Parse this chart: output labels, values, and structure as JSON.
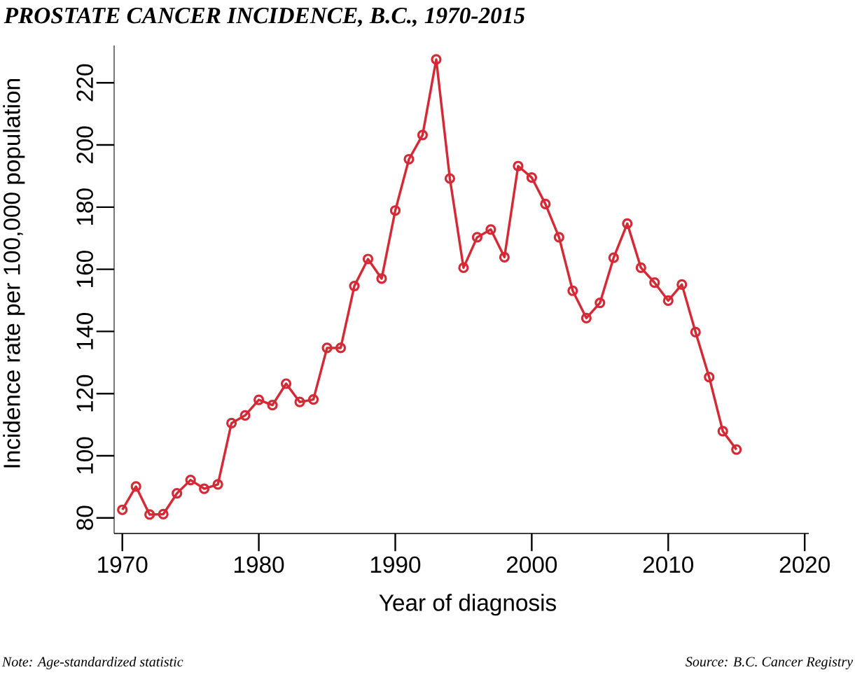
{
  "chart_data": {
    "type": "line",
    "title": "PROSTATE CANCER INCIDENCE, B.C., 1970-2015",
    "xlabel": "Year of diagnosis",
    "ylabel": "Incidence rate per 100,000 population",
    "x": [
      1970,
      1971,
      1972,
      1973,
      1974,
      1975,
      1976,
      1977,
      1978,
      1979,
      1980,
      1981,
      1982,
      1983,
      1984,
      1985,
      1986,
      1987,
      1988,
      1989,
      1990,
      1991,
      1992,
      1993,
      1994,
      1995,
      1996,
      1997,
      1998,
      1999,
      2000,
      2001,
      2002,
      2003,
      2004,
      2005,
      2006,
      2007,
      2008,
      2009,
      2010,
      2011,
      2012,
      2013,
      2014,
      2015
    ],
    "values": [
      82.6,
      90.1,
      81.1,
      81.2,
      87.9,
      92.2,
      89.4,
      90.8,
      110.5,
      113.0,
      118.0,
      116.3,
      123.2,
      117.3,
      118.1,
      134.7,
      134.7,
      154.6,
      163.3,
      157.0,
      178.9,
      195.4,
      203.2,
      227.5,
      189.2,
      160.5,
      170.3,
      172.8,
      163.9,
      193.2,
      189.5,
      181.0,
      170.3,
      153.1,
      144.3,
      149.2,
      163.7,
      174.7,
      160.5,
      155.7,
      149.9,
      155.1,
      139.8,
      125.3,
      107.9,
      102.0
    ],
    "color": "#d42a36",
    "marker": "circle",
    "xlim": [
      1969.4,
      2020.3
    ],
    "ylim": [
      75,
      232
    ],
    "xticks": [
      1970,
      1980,
      1990,
      2000,
      2010,
      2020
    ],
    "yticks": [
      80,
      100,
      120,
      140,
      160,
      180,
      200,
      220
    ],
    "annotations": [
      "Note: Age-standardized statistic",
      "Source: B.C. Cancer Registry"
    ]
  }
}
